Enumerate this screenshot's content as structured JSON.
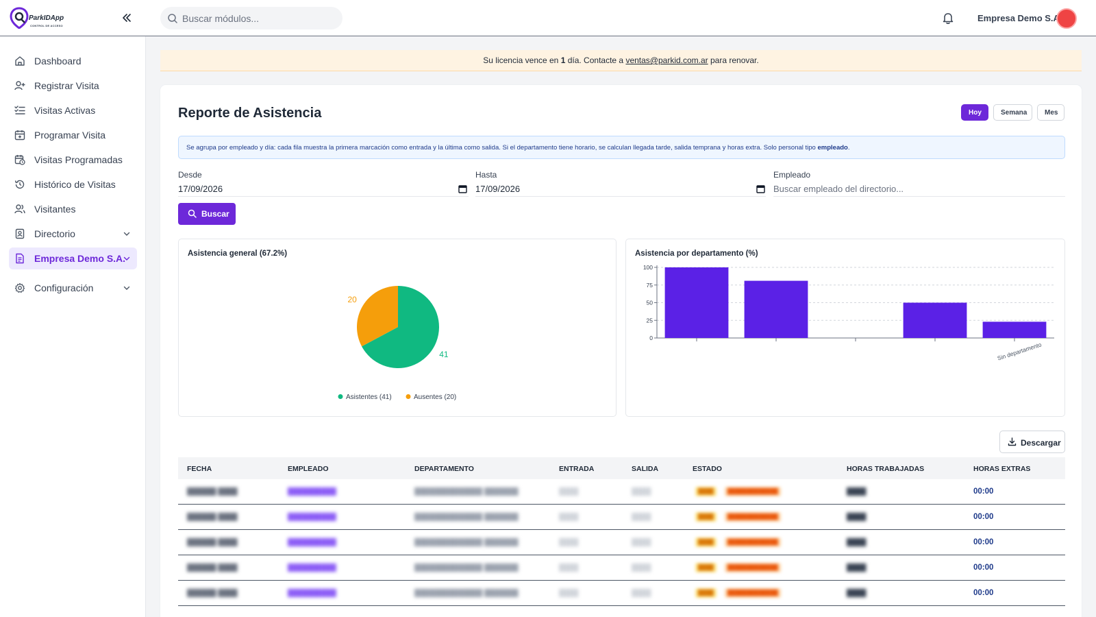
{
  "app": {
    "logo_text": "ParkIDApp",
    "logo_sub": "CONTROL DE ACCESO"
  },
  "header": {
    "search_placeholder": "Buscar módulos...",
    "company": "Empresa Demo S.A."
  },
  "sidebar": {
    "items": [
      {
        "label": "Dashboard",
        "icon": "home-icon"
      },
      {
        "label": "Registrar Visita",
        "icon": "user-plus-icon"
      },
      {
        "label": "Visitas Activas",
        "icon": "list-check-icon"
      },
      {
        "label": "Programar Visita",
        "icon": "calendar-plus-icon"
      },
      {
        "label": "Visitas Programadas",
        "icon": "calendar-clock-icon"
      },
      {
        "label": "Histórico de Visitas",
        "icon": "history-icon"
      },
      {
        "label": "Visitantes",
        "icon": "users-icon"
      },
      {
        "label": "Directorio",
        "icon": "contact-book-icon"
      },
      {
        "label": "Empresa Demo S.A.",
        "icon": "document-icon"
      },
      {
        "label": "Configuración",
        "icon": "gear-icon"
      }
    ]
  },
  "banner": {
    "pre": "Su licencia vence en ",
    "days": "1",
    "mid": " día. Contacte a ",
    "email": "ventas@parkid.com.ar",
    "post": " para renovar."
  },
  "report": {
    "title": "Reporte de Asistencia",
    "periods": {
      "today": "Hoy",
      "week": "Semana",
      "month": "Mes"
    },
    "info_text": "Se agrupa por empleado y día: cada fila muestra la primera marcación como entrada y la última como salida. Si el departamento tiene horario, se calculan llegada tarde, salida temprana y horas extra. Solo personal tipo ",
    "info_bold": "empleado",
    "info_end": ".",
    "filters": {
      "from_label": "Desde",
      "from_value": "17/09/2026",
      "to_label": "Hasta",
      "to_value": "17/09/2026",
      "employee_label": "Empleado",
      "employee_placeholder": "Buscar empleado del directorio..."
    },
    "search_button": "Buscar",
    "download_button": "Descargar"
  },
  "chart_data": [
    {
      "type": "pie",
      "title": "Asistencia general (67.2%)",
      "labels": [
        "Asistentes",
        "Ausentes"
      ],
      "values": [
        41,
        20
      ],
      "colors": [
        "#10b981",
        "#f59e0b"
      ],
      "legend": [
        "Asistentes (41)",
        "Ausentes (20)"
      ],
      "legend_position": "bottom"
    },
    {
      "type": "bar",
      "title": "Asistencia por departamento (%)",
      "categories": [
        "",
        "",
        "",
        "",
        "Sin departamento"
      ],
      "values": [
        100,
        81,
        0,
        50,
        23
      ],
      "ylim": [
        0,
        100
      ],
      "yticks": [
        0,
        25,
        50,
        75,
        100
      ],
      "color": "#5b21e6",
      "grid": true
    }
  ],
  "table": {
    "headers": [
      "FECHA",
      "EMPLEADO",
      "DEPARTAMENTO",
      "ENTRADA",
      "SALIDA",
      "ESTADO",
      "HORAS TRABAJADAS",
      "HORAS EXTRAS"
    ],
    "rows": [
      {
        "horas_extras": "00:00"
      },
      {
        "horas_extras": "00:00"
      },
      {
        "horas_extras": "00:00"
      },
      {
        "horas_extras": "00:00"
      },
      {
        "horas_extras": "00:00"
      }
    ]
  }
}
